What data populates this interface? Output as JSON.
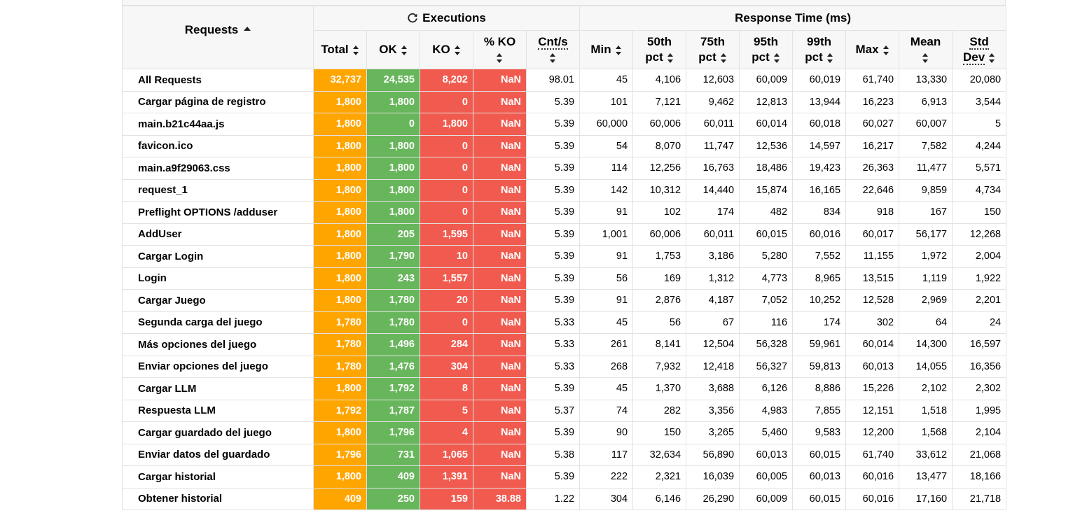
{
  "header": {
    "requests": "Requests",
    "executions": "Executions",
    "response_time": "Response Time (ms)",
    "cols": {
      "total": "Total",
      "ok": "OK",
      "ko": "KO",
      "pko": "% KO",
      "cnt": "Cnt/s",
      "min": "Min",
      "p50a": "50th",
      "p50b": "pct",
      "p75a": "75th",
      "p75b": "pct",
      "p95a": "95th",
      "p95b": "pct",
      "p99a": "99th",
      "p99b": "pct",
      "max": "Max",
      "mean": "Mean",
      "stda": "Std",
      "stdb": "Dev"
    }
  },
  "colors": {
    "total": "#ffa500",
    "ok": "#68b65c",
    "ko": "#f15b4f"
  },
  "rows": [
    [
      "All Requests",
      "32,737",
      "24,535",
      "8,202",
      "NaN",
      "98.01",
      "45",
      "4,106",
      "12,603",
      "60,009",
      "60,019",
      "61,740",
      "13,330",
      "20,080"
    ],
    [
      "Cargar página de registro",
      "1,800",
      "1,800",
      "0",
      "NaN",
      "5.39",
      "101",
      "7,121",
      "9,462",
      "12,813",
      "13,944",
      "16,223",
      "6,913",
      "3,544"
    ],
    [
      "main.b21c44aa.js",
      "1,800",
      "0",
      "1,800",
      "NaN",
      "5.39",
      "60,000",
      "60,006",
      "60,011",
      "60,014",
      "60,018",
      "60,027",
      "60,007",
      "5"
    ],
    [
      "favicon.ico",
      "1,800",
      "1,800",
      "0",
      "NaN",
      "5.39",
      "54",
      "8,070",
      "11,747",
      "12,536",
      "14,597",
      "16,217",
      "7,582",
      "4,244"
    ],
    [
      "main.a9f29063.css",
      "1,800",
      "1,800",
      "0",
      "NaN",
      "5.39",
      "114",
      "12,256",
      "16,763",
      "18,486",
      "19,423",
      "26,363",
      "11,477",
      "5,571"
    ],
    [
      "request_1",
      "1,800",
      "1,800",
      "0",
      "NaN",
      "5.39",
      "142",
      "10,312",
      "14,440",
      "15,874",
      "16,165",
      "22,646",
      "9,859",
      "4,734"
    ],
    [
      "Preflight OPTIONS /adduser",
      "1,800",
      "1,800",
      "0",
      "NaN",
      "5.39",
      "91",
      "102",
      "174",
      "482",
      "834",
      "918",
      "167",
      "150"
    ],
    [
      "AddUser",
      "1,800",
      "205",
      "1,595",
      "NaN",
      "5.39",
      "1,001",
      "60,006",
      "60,011",
      "60,015",
      "60,016",
      "60,017",
      "56,177",
      "12,268"
    ],
    [
      "Cargar Login",
      "1,800",
      "1,790",
      "10",
      "NaN",
      "5.39",
      "91",
      "1,753",
      "3,186",
      "5,280",
      "7,552",
      "11,155",
      "1,972",
      "2,004"
    ],
    [
      "Login",
      "1,800",
      "243",
      "1,557",
      "NaN",
      "5.39",
      "56",
      "169",
      "1,312",
      "4,773",
      "8,965",
      "13,515",
      "1,119",
      "1,922"
    ],
    [
      "Cargar Juego",
      "1,800",
      "1,780",
      "20",
      "NaN",
      "5.39",
      "91",
      "2,876",
      "4,187",
      "7,052",
      "10,252",
      "12,528",
      "2,969",
      "2,201"
    ],
    [
      "Segunda carga del juego",
      "1,780",
      "1,780",
      "0",
      "NaN",
      "5.33",
      "45",
      "56",
      "67",
      "116",
      "174",
      "302",
      "64",
      "24"
    ],
    [
      "Más opciones del juego",
      "1,780",
      "1,496",
      "284",
      "NaN",
      "5.33",
      "261",
      "8,141",
      "12,504",
      "56,328",
      "59,961",
      "60,014",
      "14,300",
      "16,597"
    ],
    [
      "Enviar opciones del juego",
      "1,780",
      "1,476",
      "304",
      "NaN",
      "5.33",
      "268",
      "7,932",
      "12,418",
      "56,327",
      "59,813",
      "60,013",
      "14,055",
      "16,356"
    ],
    [
      "Cargar LLM",
      "1,800",
      "1,792",
      "8",
      "NaN",
      "5.39",
      "45",
      "1,370",
      "3,688",
      "6,126",
      "8,886",
      "15,226",
      "2,102",
      "2,302"
    ],
    [
      "Respuesta LLM",
      "1,792",
      "1,787",
      "5",
      "NaN",
      "5.37",
      "74",
      "282",
      "3,356",
      "4,983",
      "7,855",
      "12,151",
      "1,518",
      "1,995"
    ],
    [
      "Cargar guardado del juego",
      "1,800",
      "1,796",
      "4",
      "NaN",
      "5.39",
      "90",
      "150",
      "3,265",
      "5,460",
      "9,583",
      "12,200",
      "1,568",
      "2,104"
    ],
    [
      "Enviar datos del guardado",
      "1,796",
      "731",
      "1,065",
      "NaN",
      "5.38",
      "117",
      "32,634",
      "56,890",
      "60,013",
      "60,015",
      "61,740",
      "33,612",
      "21,068"
    ],
    [
      "Cargar historial",
      "1,800",
      "409",
      "1,391",
      "NaN",
      "5.39",
      "222",
      "2,321",
      "16,039",
      "60,005",
      "60,013",
      "60,016",
      "13,477",
      "18,166"
    ],
    [
      "Obtener historial",
      "409",
      "250",
      "159",
      "38.88",
      "1.22",
      "304",
      "6,146",
      "26,290",
      "60,009",
      "60,015",
      "60,016",
      "17,160",
      "21,718"
    ]
  ]
}
